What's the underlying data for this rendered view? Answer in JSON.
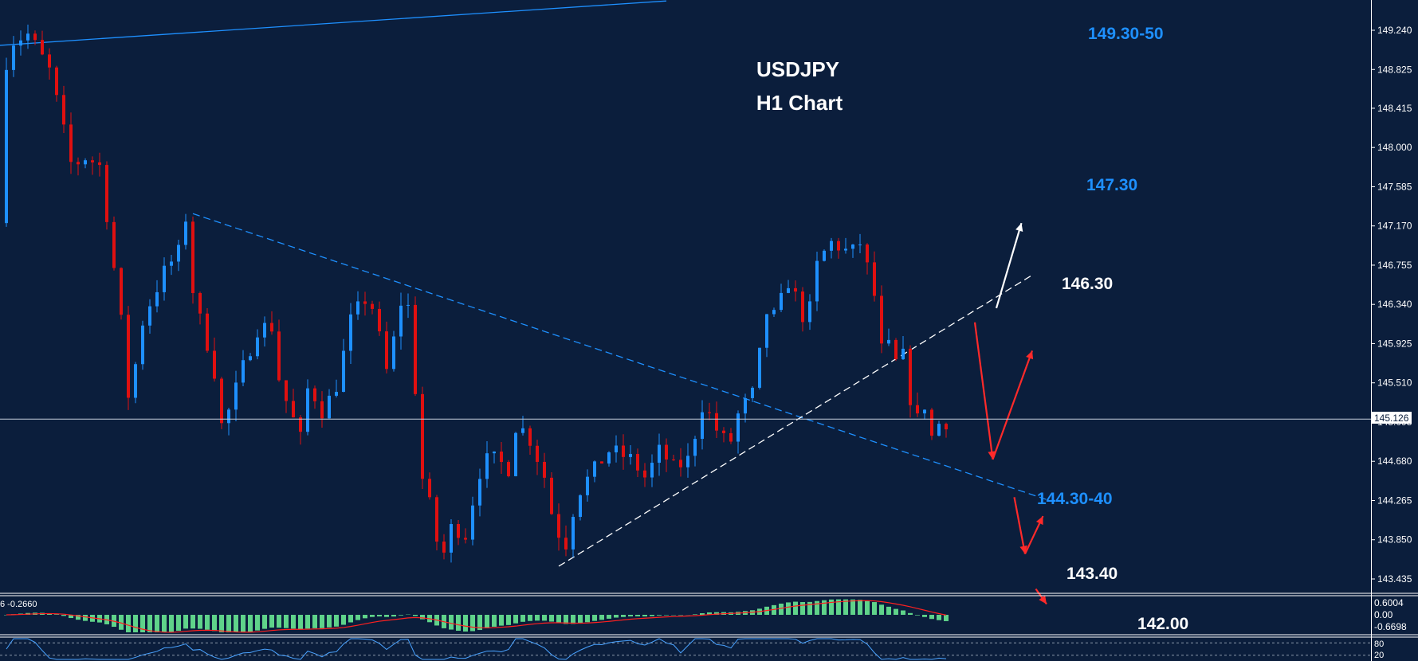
{
  "chart_title": {
    "line1": "USDJPY",
    "line2": "H1 Chart"
  },
  "chart_data": {
    "type": "candlestick",
    "symbol": "USDJPY",
    "timeframe": "H1",
    "ylim": [
      143.2,
      149.6
    ],
    "y_ticks": [
      "149.240",
      "148.825",
      "148.415",
      "148.000",
      "147.585",
      "147.170",
      "146.755",
      "146.340",
      "145.925",
      "145.510",
      "145.095",
      "144.680",
      "144.265",
      "143.850",
      "143.435"
    ],
    "current_price": "145.126",
    "current_price_value": 145.126,
    "price_path": [
      [
        0,
        147.2
      ],
      [
        1,
        149.1
      ],
      [
        4,
        149.2
      ],
      [
        7,
        148.8
      ],
      [
        10,
        147.8
      ],
      [
        12,
        147.9
      ],
      [
        14,
        147.8
      ],
      [
        17,
        146.1
      ],
      [
        18,
        145.3
      ],
      [
        20,
        146.2
      ],
      [
        23,
        146.7
      ],
      [
        25,
        146.9
      ],
      [
        26,
        147.3
      ],
      [
        27,
        146.4
      ],
      [
        29,
        145.9
      ],
      [
        30,
        145.6
      ],
      [
        31,
        145.0
      ],
      [
        34,
        145.7
      ],
      [
        36,
        146.1
      ],
      [
        38,
        146.1
      ],
      [
        39,
        145.5
      ],
      [
        40,
        145.3
      ],
      [
        42,
        144.9
      ],
      [
        43,
        145.5
      ],
      [
        45,
        145.2
      ],
      [
        47,
        145.5
      ],
      [
        49,
        146.2
      ],
      [
        51,
        146.4
      ],
      [
        52,
        146.3
      ],
      [
        54,
        145.6
      ],
      [
        55,
        146.0
      ],
      [
        56,
        146.4
      ],
      [
        57,
        146.3
      ],
      [
        59,
        144.4
      ],
      [
        60,
        144.2
      ],
      [
        61,
        143.8
      ],
      [
        62,
        143.7
      ],
      [
        63,
        144.0
      ],
      [
        65,
        143.9
      ],
      [
        66,
        144.3
      ],
      [
        67,
        144.6
      ],
      [
        68,
        144.7
      ],
      [
        69,
        144.7
      ],
      [
        71,
        144.6
      ],
      [
        72,
        145.1
      ],
      [
        74,
        144.9
      ],
      [
        76,
        144.5
      ],
      [
        77,
        144.1
      ],
      [
        78,
        143.9
      ],
      [
        79,
        143.8
      ],
      [
        80,
        144.2
      ],
      [
        81,
        144.4
      ],
      [
        82,
        144.5
      ],
      [
        84,
        144.7
      ],
      [
        85,
        144.8
      ],
      [
        88,
        144.7
      ],
      [
        90,
        144.5
      ],
      [
        92,
        144.8
      ],
      [
        94,
        144.6
      ],
      [
        96,
        144.7
      ],
      [
        98,
        145.3
      ],
      [
        100,
        145.0
      ],
      [
        101,
        144.9
      ],
      [
        102,
        144.9
      ],
      [
        103,
        145.2
      ],
      [
        104,
        145.3
      ],
      [
        105,
        145.4
      ],
      [
        107,
        146.3
      ],
      [
        108,
        146.2
      ],
      [
        110,
        146.6
      ],
      [
        112,
        146.2
      ],
      [
        113,
        146.3
      ],
      [
        114,
        146.8
      ],
      [
        115,
        146.9
      ],
      [
        116,
        147.0
      ],
      [
        118,
        146.9
      ],
      [
        119,
        146.9
      ],
      [
        120,
        147.0
      ],
      [
        122,
        146.4
      ],
      [
        123,
        145.8
      ],
      [
        124,
        145.9
      ],
      [
        125,
        145.7
      ],
      [
        126,
        145.8
      ],
      [
        127,
        145.3
      ],
      [
        128,
        145.1
      ],
      [
        129,
        145.3
      ],
      [
        130,
        144.9
      ],
      [
        131,
        145.1
      ]
    ],
    "trendlines": [
      {
        "name": "upper-long",
        "color": "#1e90ff",
        "style": "solid",
        "points": [
          [
            -1,
            149.08
          ],
          [
            92,
            149.55
          ]
        ]
      },
      {
        "name": "descending",
        "color": "#1e90ff",
        "style": "dashed",
        "points": [
          [
            26,
            147.3
          ],
          [
            146,
            144.25
          ]
        ]
      },
      {
        "name": "ascending",
        "color": "#ffffff",
        "style": "dashed",
        "points": [
          [
            77,
            143.57
          ],
          [
            143,
            146.65
          ]
        ]
      }
    ],
    "annotations": [
      {
        "text": "149.30-50",
        "color": "#1e90ff",
        "price": 149.3
      },
      {
        "text": "147.30",
        "color": "#1e90ff",
        "price": 147.3
      },
      {
        "text": "146.30",
        "color": "#ffffff",
        "price": 146.3
      },
      {
        "text": "144.30-40",
        "color": "#1e90ff",
        "price": 144.3
      },
      {
        "text": "143.40",
        "color": "#ffffff",
        "price": 143.4
      },
      {
        "text": "142.00",
        "color": "#ffffff",
        "price": 142.0
      }
    ],
    "scenario_arrows": [
      {
        "color": "#ffffff",
        "from": [
          138,
          146.3
        ],
        "to": [
          141.5,
          147.2
        ]
      },
      {
        "color": "#ff2a2a",
        "from": [
          135,
          146.15
        ],
        "to": [
          137.5,
          144.7
        ]
      },
      {
        "color": "#ff2a2a",
        "from": [
          137.5,
          144.7
        ],
        "to": [
          143,
          145.85
        ]
      },
      {
        "color": "#ff2a2a",
        "from": [
          140.5,
          144.3
        ],
        "to": [
          142,
          143.7
        ]
      },
      {
        "color": "#ff2a2a",
        "from": [
          142,
          143.7
        ],
        "to": [
          144.5,
          144.1
        ]
      },
      {
        "color": "#ff2a2a",
        "from": [
          143.5,
          143.33
        ],
        "to": [
          145,
          143.17
        ]
      }
    ],
    "macd": {
      "label": "6 -0.2660",
      "y_ticks": [
        "0.6004",
        "0.00",
        "-0.6698"
      ],
      "ylim": [
        -0.8,
        0.8
      ]
    },
    "stochastic": {
      "y_ticks": [
        "80",
        "20"
      ],
      "ylim": [
        0,
        100
      ]
    }
  },
  "colors": {
    "background": "#0b1e3c",
    "bull": "#1e90ff",
    "bear": "#e01010",
    "axis_text": "#ffffff",
    "macd_hist": "#5fd38a",
    "macd_signal": "#ff2020"
  }
}
